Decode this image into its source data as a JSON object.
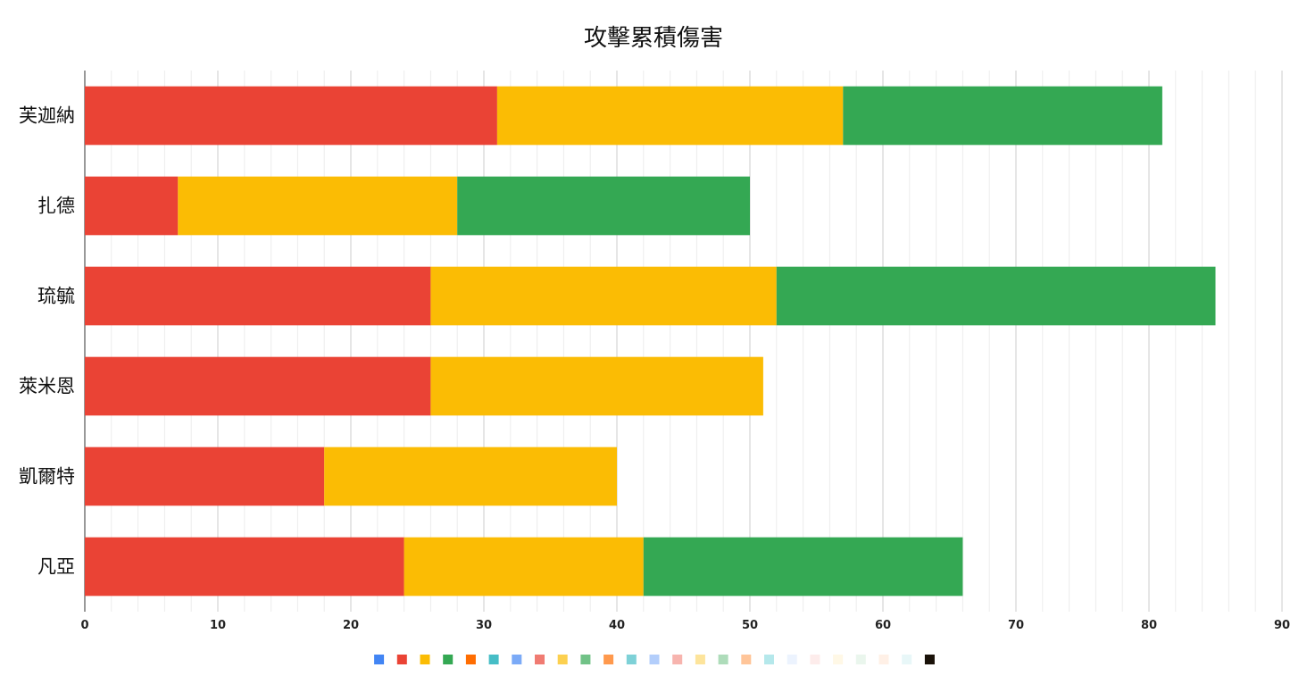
{
  "chart_data": {
    "type": "bar",
    "orientation": "horizontal",
    "stacked": true,
    "title": "攻擊累積傷害",
    "categories": [
      "芙迦納",
      "扎德",
      "琉毓",
      "萊米恩",
      "凱爾特",
      "凡亞"
    ],
    "series": [
      {
        "color": "#ea4335",
        "values": [
          31,
          7,
          26,
          26,
          18,
          24
        ]
      },
      {
        "color": "#fbbc04",
        "values": [
          26,
          21,
          26,
          25,
          22,
          18
        ]
      },
      {
        "color": "#34a853",
        "values": [
          24,
          22,
          33,
          0,
          0,
          24
        ]
      }
    ],
    "xlim": [
      0,
      90
    ],
    "xticks": [
      "0",
      "10",
      "20",
      "30",
      "40",
      "50",
      "60",
      "70",
      "80",
      "90"
    ],
    "grid": true,
    "legend": {
      "position": "bottom",
      "swatch_colors": [
        "#4285f4",
        "#ea4335",
        "#fbbc04",
        "#34a853",
        "#ff6d01",
        "#46bdc6",
        "#7baaf7",
        "#f07b72",
        "#fcd04f",
        "#71c287",
        "#ff994d",
        "#7ed1d7",
        "#b3cefb",
        "#f7b4ae",
        "#fde49b",
        "#aedcba",
        "#ffc599",
        "#b5e8eb",
        "#ecf3fe",
        "#fdeceb",
        "#fff8e6",
        "#eaf6ed",
        "#fff0e6",
        "#e8f7f8",
        "#1a1209"
      ]
    }
  }
}
